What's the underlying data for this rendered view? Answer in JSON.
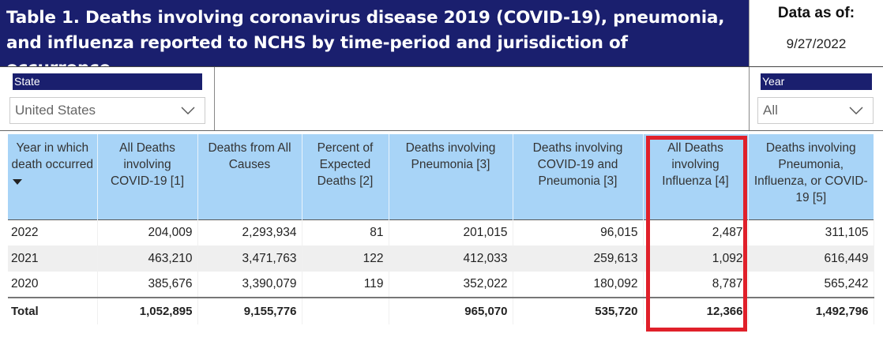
{
  "header": {
    "title": "Table 1. Deaths involving coronavirus disease 2019 (COVID-19), pneumonia, and influenza reported to NCHS by time-period and jurisdiction of occurrence.",
    "data_as_of_label": "Data as of:",
    "data_as_of_value": "9/27/2022"
  },
  "filters": {
    "state": {
      "label": "State",
      "selected": "United States"
    },
    "year": {
      "label": "Year",
      "selected": "All"
    }
  },
  "table": {
    "columns": [
      "Year in which death occurred",
      "All Deaths involving COVID-19 [1]",
      "Deaths from All Causes",
      "Percent of Expected Deaths [2]",
      "Deaths involving Pneumonia [3]",
      "Deaths involving COVID-19 and Pneumonia [3]",
      "All Deaths involving Influenza [4]",
      "Deaths involving Pneumonia, Influenza, or COVID-19 [5]"
    ],
    "rows": [
      [
        "2022",
        "204,009",
        "2,293,934",
        "81",
        "201,015",
        "96,015",
        "2,487",
        "311,105"
      ],
      [
        "2021",
        "463,210",
        "3,471,763",
        "122",
        "412,033",
        "259,613",
        "1,092",
        "616,449"
      ],
      [
        "2020",
        "385,676",
        "3,390,079",
        "119",
        "352,022",
        "180,092",
        "8,787",
        "565,242"
      ]
    ],
    "total": [
      "Total",
      "1,052,895",
      "9,155,776",
      "",
      "965,070",
      "535,720",
      "12,366",
      "1,492,796"
    ]
  },
  "colors": {
    "title_bg": "#1a1f6e",
    "header_bg": "#a8d4f7",
    "highlight": "#e0202a",
    "row_shade": "#efefef"
  },
  "icons": [
    "chevron-down-icon",
    "sort-descending-icon"
  ]
}
